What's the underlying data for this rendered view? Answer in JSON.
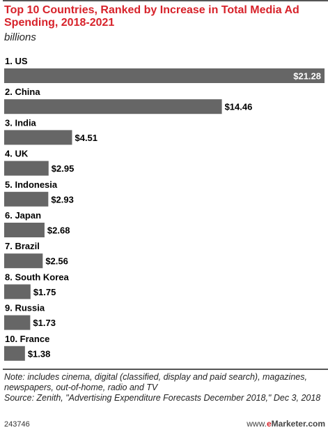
{
  "title": "Top 10 Countries, Ranked by Increase in Total Media Ad Spending, 2018-2021",
  "subtitle": "billions",
  "chart_data": {
    "type": "bar",
    "orientation": "horizontal",
    "categories": [
      "1. US",
      "2. China",
      "3. India",
      "4. UK",
      "5. Indonesia",
      "6. Japan",
      "7. Brazil",
      "8. South Korea",
      "9. Russia",
      "10. France"
    ],
    "values": [
      21.28,
      14.46,
      4.51,
      2.95,
      2.93,
      2.68,
      2.56,
      1.75,
      1.73,
      1.38
    ],
    "value_labels": [
      "$21.28",
      "$14.46",
      "$4.51",
      "$2.95",
      "$2.93",
      "$2.68",
      "$2.56",
      "$1.75",
      "$1.73",
      "$1.38"
    ],
    "title": "Top 10 Countries, Ranked by Increase in Total Media Ad Spending, 2018-2021",
    "unit": "billions",
    "xlim": [
      0,
      21.28
    ],
    "bar_color": "#666666",
    "grid": false
  },
  "note": {
    "line1": "Note: includes cinema, digital (classified, display and paid search), magazines, newspapers, out-of-home, radio and TV",
    "line2": "Source: Zenith, \"Advertising Expenditure Forecasts December 2018,\" Dec 3, 2018"
  },
  "footer": {
    "chart_id": "243746",
    "brand_prefix": "www.",
    "brand_e": "e",
    "brand_rest": "Marketer.com"
  },
  "colors": {
    "title": "#d7222a",
    "bar": "#666666"
  }
}
